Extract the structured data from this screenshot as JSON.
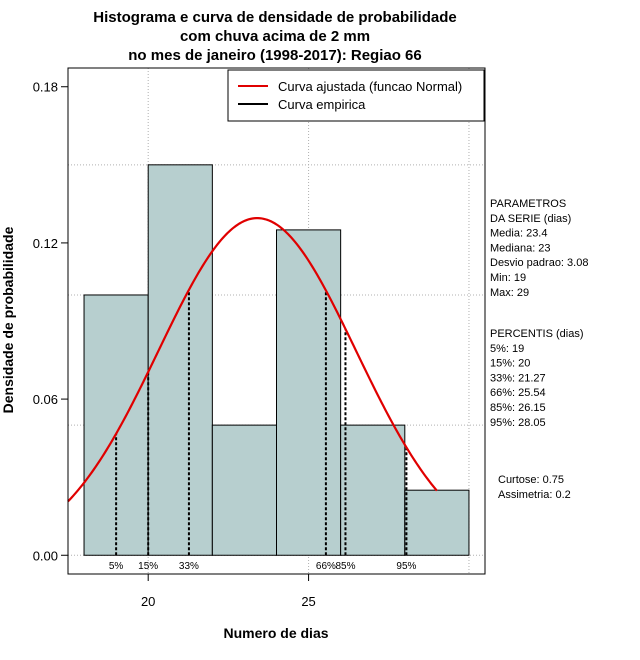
{
  "chart_data": {
    "type": "histogram",
    "title_lines": [
      "Histograma e curva de densidade de probabilidade",
      "com chuva acima de 2 mm",
      "no mes de janeiro (1998-2017): Regiao 66"
    ],
    "xlabel": "Numero de dias",
    "ylabel": "Densidade de probabilidade",
    "xlim": [
      17.5,
      30.5
    ],
    "ylim": [
      0.0,
      0.18
    ],
    "xticks": [
      20,
      25
    ],
    "yticks": [
      0.0,
      0.06,
      0.12,
      0.18
    ],
    "ytick_labels": [
      "0.00",
      "0.06",
      "0.12",
      "0.18"
    ],
    "grid": true,
    "bins": [
      {
        "x0": 18,
        "x1": 20,
        "density": 0.1
      },
      {
        "x0": 20,
        "x1": 22,
        "density": 0.15
      },
      {
        "x0": 22,
        "x1": 24,
        "density": 0.05
      },
      {
        "x0": 24,
        "x1": 26,
        "density": 0.125
      },
      {
        "x0": 26,
        "x1": 28,
        "density": 0.05
      },
      {
        "x0": 28,
        "x1": 30,
        "density": 0.025
      }
    ],
    "bar_color": "#b7cfcf",
    "normal_fit": {
      "mean": 23.4,
      "sd": 3.08,
      "color": "#e00000",
      "x_range": [
        17.5,
        29.0
      ]
    },
    "percentile_lines": [
      {
        "label": "5%",
        "x": 19
      },
      {
        "label": "15%",
        "x": 20
      },
      {
        "label": "33%",
        "x": 21.27
      },
      {
        "label": "66%",
        "x": 25.54
      },
      {
        "label": "85%",
        "x": 26.15
      },
      {
        "label": "95%",
        "x": 28.05
      }
    ],
    "legend": {
      "position": "top-right",
      "entries": [
        {
          "label": "Curva ajustada (funcao Normal)",
          "color": "#e00000"
        },
        {
          "label": "Curva empirica",
          "color": "#000000"
        }
      ]
    }
  },
  "side_panel": {
    "parametros": [
      "PARAMETROS",
      "DA SERIE (dias)",
      "  Media: 23.4",
      "  Mediana: 23",
      "  Desvio padrao: 3.08",
      "  Min: 19",
      "  Max: 29"
    ],
    "percentis": [
      "PERCENTIS (dias)",
      "  5%: 19",
      "  15%: 20",
      "  33%: 21.27",
      "  66%: 25.54",
      "  85%: 26.15",
      "  95%: 28.05"
    ],
    "shape": [
      "Curtose: 0.75",
      "Assimetria: 0.2"
    ]
  }
}
